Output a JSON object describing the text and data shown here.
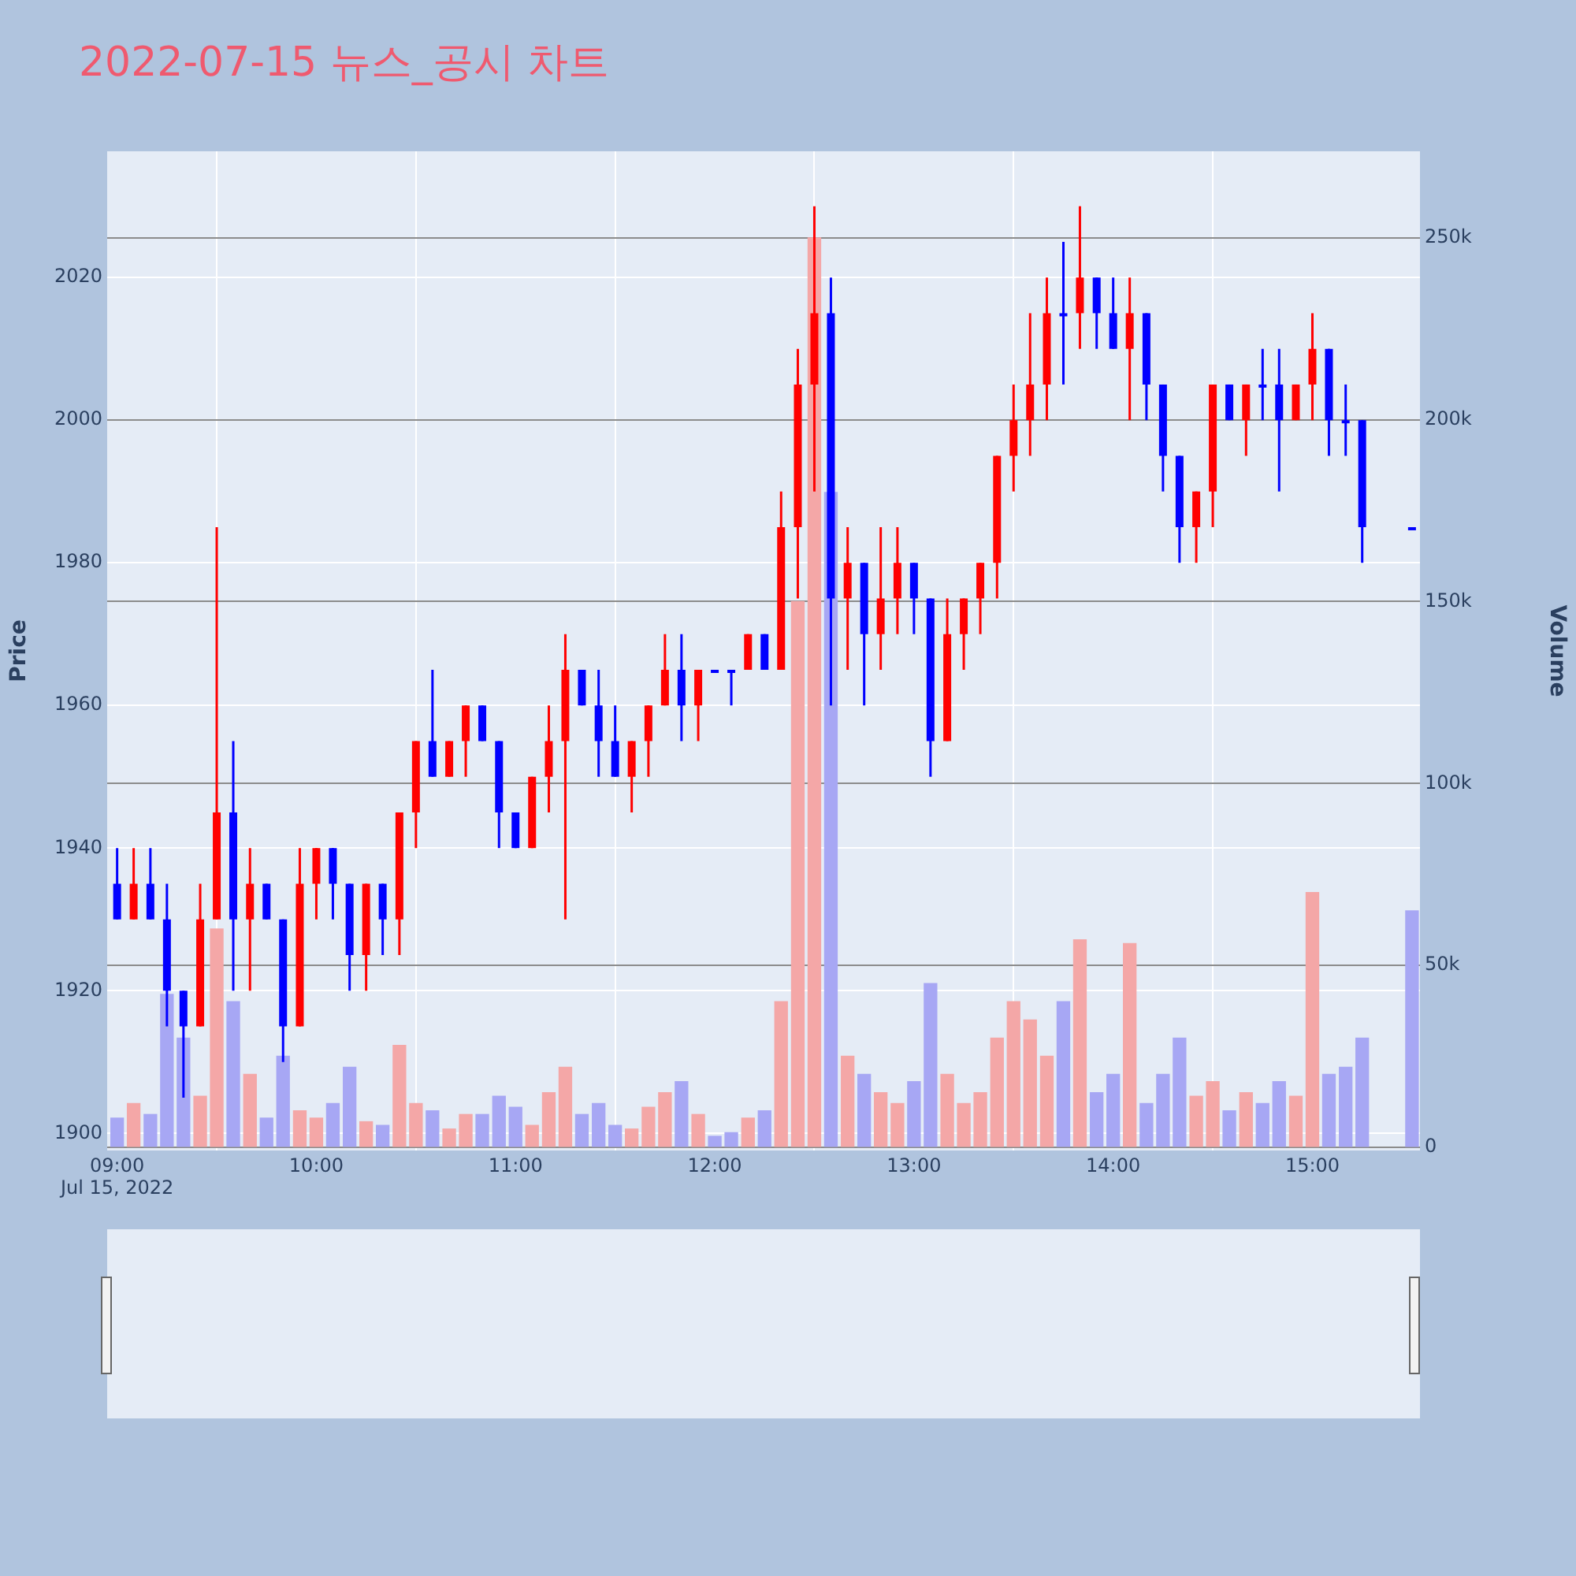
{
  "chart_data": {
    "type": "candlestick",
    "title": "2022-07-15 뉴스_공시 차트",
    "ylabel": "Price",
    "y2label": "Volume",
    "xlim": [
      8.95,
      15.54
    ],
    "xticks": [
      {
        "value": 9,
        "label": "09:00\nJul 15, 2022"
      },
      {
        "value": 10,
        "label": "10:00"
      },
      {
        "value": 11,
        "label": "11:00"
      },
      {
        "value": 12,
        "label": "12:00"
      },
      {
        "value": 13,
        "label": "13:00"
      },
      {
        "value": 14,
        "label": "14:00"
      },
      {
        "value": 15,
        "label": "15:00"
      }
    ],
    "ylim": [
      1897.6,
      2037.7
    ],
    "yticks": [
      1900,
      1920,
      1940,
      1960,
      1980,
      2000,
      2020
    ],
    "y2lim": [
      -900,
      273800
    ],
    "y2ticks": [
      0,
      {
        "value": 50000,
        "label": "50k"
      },
      {
        "value": 100000,
        "label": "100k"
      },
      {
        "value": 150000,
        "label": "150k"
      },
      {
        "value": 200000,
        "label": "200k"
      },
      {
        "value": 250000,
        "label": "250k"
      }
    ],
    "grid": true,
    "legend": false,
    "series": [
      {
        "type": "bar",
        "axis": "y2",
        "x": [
          9,
          9.083,
          9.167,
          9.25,
          9.333,
          9.417,
          9.5,
          9.583,
          9.667,
          9.75,
          9.833,
          9.917,
          10,
          10.083,
          10.167,
          10.25,
          10.333,
          10.417,
          10.5,
          10.583,
          10.667,
          10.75,
          10.833,
          10.917,
          11,
          11.083,
          11.167,
          11.25,
          11.333,
          11.417,
          11.5,
          11.583,
          11.667,
          11.75,
          11.833,
          11.917,
          12,
          12.083,
          12.167,
          12.25,
          12.333,
          12.417,
          12.5,
          12.583,
          12.667,
          12.75,
          12.833,
          12.917,
          13,
          13.083,
          13.167,
          13.25,
          13.333,
          13.417,
          13.5,
          13.583,
          13.667,
          13.75,
          13.833,
          13.917,
          14,
          14.083,
          14.167,
          14.25,
          14.333,
          14.417,
          14.5,
          14.583,
          14.667,
          14.75,
          14.833,
          14.917,
          15,
          15.083,
          15.167,
          15.25,
          15.5
        ],
        "values": [
          8000,
          12000,
          9000,
          42000,
          30000,
          14000,
          60000,
          40000,
          20000,
          8000,
          25000,
          10000,
          8000,
          12000,
          22000,
          7000,
          6000,
          28000,
          12000,
          10000,
          5000,
          9000,
          9000,
          14000,
          11000,
          6000,
          15000,
          22000,
          9000,
          12000,
          6000,
          5000,
          11000,
          15000,
          18000,
          9000,
          3000,
          4000,
          8000,
          10000,
          40000,
          150000,
          250000,
          180000,
          25000,
          20000,
          15000,
          12000,
          18000,
          45000,
          20000,
          12000,
          15000,
          30000,
          40000,
          35000,
          25000,
          40000,
          57000,
          15000,
          20000,
          56000,
          12000,
          20000,
          30000,
          14000,
          18000,
          10000,
          15000,
          12000,
          18000,
          14000,
          70000,
          20000,
          22000,
          30000,
          65000
        ],
        "colors": [
          "#a7a7f4",
          "#f4a7a7",
          "#a7a7f4",
          "#a7a7f4",
          "#a7a7f4",
          "#f4a7a7",
          "#f4a7a7",
          "#a7a7f4",
          "#f4a7a7",
          "#a7a7f4",
          "#a7a7f4",
          "#f4a7a7",
          "#f4a7a7",
          "#a7a7f4",
          "#a7a7f4",
          "#f4a7a7",
          "#a7a7f4",
          "#f4a7a7",
          "#f4a7a7",
          "#a7a7f4",
          "#f4a7a7",
          "#f4a7a7",
          "#a7a7f4",
          "#a7a7f4",
          "#a7a7f4",
          "#f4a7a7",
          "#f4a7a7",
          "#f4a7a7",
          "#a7a7f4",
          "#a7a7f4",
          "#a7a7f4",
          "#f4a7a7",
          "#f4a7a7",
          "#f4a7a7",
          "#a7a7f4",
          "#f4a7a7",
          "#a7a7f4",
          "#a7a7f4",
          "#f4a7a7",
          "#a7a7f4",
          "#f4a7a7",
          "#f4a7a7",
          "#f4a7a7",
          "#a7a7f4",
          "#f4a7a7",
          "#a7a7f4",
          "#f4a7a7",
          "#f4a7a7",
          "#a7a7f4",
          "#a7a7f4",
          "#f4a7a7",
          "#f4a7a7",
          "#f4a7a7",
          "#f4a7a7",
          "#f4a7a7",
          "#f4a7a7",
          "#f4a7a7",
          "#a7a7f4",
          "#f4a7a7",
          "#a7a7f4",
          "#a7a7f4",
          "#f4a7a7",
          "#a7a7f4",
          "#a7a7f4",
          "#a7a7f4",
          "#f4a7a7",
          "#f4a7a7",
          "#a7a7f4",
          "#f4a7a7",
          "#a7a7f4",
          "#a7a7f4",
          "#f4a7a7",
          "#f4a7a7",
          "#a7a7f4",
          "#a7a7f4",
          "#a7a7f4",
          "#a7a7f4"
        ]
      },
      {
        "x": [
          9,
          9.083,
          9.167,
          9.25,
          9.333,
          9.417,
          9.5,
          9.583,
          9.667,
          9.75,
          9.833,
          9.917,
          10,
          10.083,
          10.167,
          10.25,
          10.333,
          10.417,
          10.5,
          10.583,
          10.667,
          10.75,
          10.833,
          10.917,
          11,
          11.083,
          11.167,
          11.25,
          11.333,
          11.417,
          11.5,
          11.583,
          11.667,
          11.75,
          11.833,
          11.917,
          12,
          12.083,
          12.167,
          12.25,
          12.333,
          12.417,
          12.5,
          12.583,
          12.667,
          12.75,
          12.833,
          12.917,
          13,
          13.083,
          13.167,
          13.25,
          13.333,
          13.417,
          13.5,
          13.583,
          13.667,
          13.75,
          13.833,
          13.917,
          14,
          14.083,
          14.167,
          14.25,
          14.333,
          14.417,
          14.5,
          14.583,
          14.667,
          14.75,
          14.833,
          14.917,
          15,
          15.083,
          15.167,
          15.25,
          15.5
        ],
        "ohlc": [
          [
            1935,
            1940,
            1930,
            1930
          ],
          [
            1930,
            1940,
            1930,
            1935
          ],
          [
            1935,
            1940,
            1930,
            1930
          ],
          [
            1930,
            1935,
            1915,
            1920
          ],
          [
            1920,
            1920,
            1905,
            1915
          ],
          [
            1915,
            1935,
            1915,
            1930
          ],
          [
            1930,
            1985,
            1930,
            1945
          ],
          [
            1945,
            1955,
            1920,
            1930
          ],
          [
            1930,
            1940,
            1920,
            1935
          ],
          [
            1935,
            1935,
            1930,
            1930
          ],
          [
            1930,
            1930,
            1910,
            1915
          ],
          [
            1915,
            1940,
            1915,
            1935
          ],
          [
            1935,
            1940,
            1930,
            1940
          ],
          [
            1940,
            1940,
            1930,
            1935
          ],
          [
            1935,
            1935,
            1920,
            1925
          ],
          [
            1925,
            1935,
            1920,
            1935
          ],
          [
            1935,
            1935,
            1925,
            1930
          ],
          [
            1930,
            1945,
            1925,
            1945
          ],
          [
            1945,
            1955,
            1940,
            1955
          ],
          [
            1955,
            1965,
            1950,
            1950
          ],
          [
            1950,
            1955,
            1950,
            1955
          ],
          [
            1955,
            1960,
            1950,
            1960
          ],
          [
            1960,
            1960,
            1955,
            1955
          ],
          [
            1955,
            1955,
            1940,
            1945
          ],
          [
            1945,
            1945,
            1940,
            1940
          ],
          [
            1940,
            1950,
            1940,
            1950
          ],
          [
            1950,
            1960,
            1945,
            1955
          ],
          [
            1955,
            1970,
            1930,
            1965
          ],
          [
            1965,
            1965,
            1960,
            1960
          ],
          [
            1960,
            1965,
            1950,
            1955
          ],
          [
            1955,
            1960,
            1950,
            1950
          ],
          [
            1950,
            1955,
            1945,
            1955
          ],
          [
            1955,
            1960,
            1950,
            1960
          ],
          [
            1960,
            1970,
            1960,
            1965
          ],
          [
            1965,
            1970,
            1955,
            1960
          ],
          [
            1960,
            1965,
            1955,
            1965
          ],
          [
            1965,
            1965,
            1965,
            1965
          ],
          [
            1965,
            1965,
            1960,
            1965
          ],
          [
            1965,
            1970,
            1965,
            1970
          ],
          [
            1970,
            1970,
            1965,
            1965
          ],
          [
            1965,
            1990,
            1965,
            1985
          ],
          [
            1985,
            2010,
            1975,
            2005
          ],
          [
            2005,
            2030,
            1990,
            2015
          ],
          [
            2015,
            2020,
            1960,
            1975
          ],
          [
            1975,
            1985,
            1965,
            1980
          ],
          [
            1980,
            1980,
            1960,
            1970
          ],
          [
            1970,
            1985,
            1965,
            1975
          ],
          [
            1975,
            1985,
            1970,
            1980
          ],
          [
            1980,
            1980,
            1970,
            1975
          ],
          [
            1975,
            1975,
            1950,
            1955
          ],
          [
            1955,
            1975,
            1955,
            1970
          ],
          [
            1970,
            1975,
            1965,
            1975
          ],
          [
            1975,
            1980,
            1970,
            1980
          ],
          [
            1980,
            1995,
            1975,
            1995
          ],
          [
            1995,
            2005,
            1990,
            2000
          ],
          [
            2000,
            2015,
            1995,
            2005
          ],
          [
            2005,
            2020,
            2000,
            2015
          ],
          [
            2015,
            2025,
            2005,
            2015
          ],
          [
            2015,
            2030,
            2010,
            2020
          ],
          [
            2020,
            2020,
            2010,
            2015
          ],
          [
            2015,
            2020,
            2010,
            2010
          ],
          [
            2010,
            2020,
            2000,
            2015
          ],
          [
            2015,
            2015,
            2000,
            2005
          ],
          [
            2005,
            2005,
            1990,
            1995
          ],
          [
            1995,
            1995,
            1980,
            1985
          ],
          [
            1985,
            1990,
            1980,
            1990
          ],
          [
            1990,
            2005,
            1985,
            2005
          ],
          [
            2005,
            2005,
            2000,
            2000
          ],
          [
            2000,
            2005,
            1995,
            2005
          ],
          [
            2005,
            2010,
            2000,
            2005
          ],
          [
            2005,
            2010,
            1990,
            2000
          ],
          [
            2000,
            2005,
            2000,
            2005
          ],
          [
            2005,
            2015,
            2000,
            2010
          ],
          [
            2010,
            2010,
            1995,
            2000
          ],
          [
            2000,
            2005,
            1995,
            2000
          ],
          [
            2000,
            2000,
            1980,
            1985
          ],
          [
            1985,
            1985,
            1985,
            1985
          ]
        ],
        "colors": [
          "#0000ff",
          "#ff0000",
          "#0000ff",
          "#0000ff",
          "#0000ff",
          "#ff0000",
          "#ff0000",
          "#0000ff",
          "#ff0000",
          "#0000ff",
          "#0000ff",
          "#ff0000",
          "#ff0000",
          "#0000ff",
          "#0000ff",
          "#ff0000",
          "#0000ff",
          "#ff0000",
          "#ff0000",
          "#0000ff",
          "#ff0000",
          "#ff0000",
          "#0000ff",
          "#0000ff",
          "#0000ff",
          "#ff0000",
          "#ff0000",
          "#ff0000",
          "#0000ff",
          "#0000ff",
          "#0000ff",
          "#ff0000",
          "#ff0000",
          "#ff0000",
          "#0000ff",
          "#ff0000",
          "#0000ff",
          "#0000ff",
          "#ff0000",
          "#0000ff",
          "#ff0000",
          "#ff0000",
          "#ff0000",
          "#0000ff",
          "#ff0000",
          "#0000ff",
          "#ff0000",
          "#ff0000",
          "#0000ff",
          "#0000ff",
          "#ff0000",
          "#ff0000",
          "#ff0000",
          "#ff0000",
          "#ff0000",
          "#ff0000",
          "#ff0000",
          "#0000ff",
          "#ff0000",
          "#0000ff",
          "#0000ff",
          "#ff0000",
          "#0000ff",
          "#0000ff",
          "#0000ff",
          "#ff0000",
          "#ff0000",
          "#0000ff",
          "#ff0000",
          "#0000ff",
          "#0000ff",
          "#ff0000",
          "#ff0000",
          "#0000ff",
          "#0000ff",
          "#0000ff",
          "#0000ff"
        ]
      }
    ]
  }
}
